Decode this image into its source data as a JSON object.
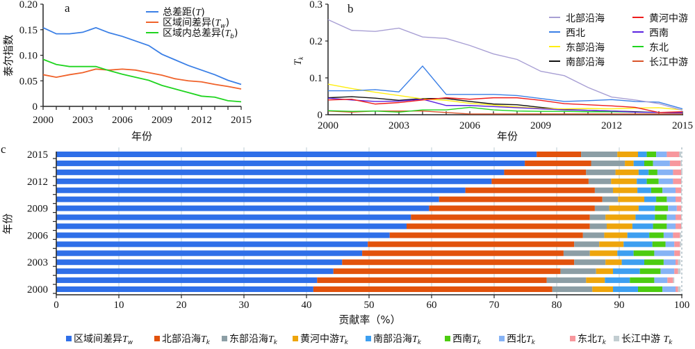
{
  "chart_data": [
    {
      "id": "a",
      "type": "line",
      "panel_label": "a",
      "xlabel": "年份",
      "ylabel": "泰尔指数",
      "xlim": [
        2000,
        2015
      ],
      "ylim": [
        0,
        0.2
      ],
      "xticks": [
        "2000",
        "2003",
        "2006",
        "2009",
        "2012",
        "2015"
      ],
      "yticks": [
        "0",
        "0.05",
        "0.10",
        "0.15",
        "0.20"
      ],
      "x": [
        2000,
        2001,
        2002,
        2003,
        2004,
        2005,
        2006,
        2007,
        2008,
        2009,
        2010,
        2011,
        2012,
        2013,
        2014,
        2015
      ],
      "legend_position": "top-right",
      "series": [
        {
          "name": "总差距(T)",
          "color": "#3a7fe6",
          "values": [
            0.154,
            0.142,
            0.142,
            0.145,
            0.154,
            0.144,
            0.137,
            0.128,
            0.119,
            0.102,
            0.091,
            0.08,
            0.071,
            0.062,
            0.051,
            0.043
          ]
        },
        {
          "name": "区域间差异(Tw)",
          "color": "#f0622a",
          "values": [
            0.062,
            0.057,
            0.062,
            0.066,
            0.073,
            0.071,
            0.073,
            0.071,
            0.066,
            0.061,
            0.054,
            0.05,
            0.048,
            0.043,
            0.039,
            0.034
          ]
        },
        {
          "name": "区域内总差异(Tb)",
          "color": "#1fd41f",
          "values": [
            0.092,
            0.082,
            0.078,
            0.078,
            0.078,
            0.07,
            0.063,
            0.057,
            0.051,
            0.041,
            0.034,
            0.027,
            0.02,
            0.018,
            0.011,
            0.009
          ]
        }
      ]
    },
    {
      "id": "b",
      "type": "line",
      "panel_label": "b",
      "xlabel": "年份",
      "ylabel": "Tk",
      "xlim": [
        2000,
        2015
      ],
      "ylim": [
        0,
        0.3
      ],
      "xticks": [
        "2000",
        "2003",
        "2006",
        "2009",
        "2012",
        "2015"
      ],
      "yticks": [
        "0",
        "0.1",
        "0.2",
        "0.3"
      ],
      "x": [
        2000,
        2001,
        2002,
        2003,
        2004,
        2005,
        2006,
        2007,
        2008,
        2009,
        2010,
        2011,
        2012,
        2013,
        2014,
        2015
      ],
      "legend_position": "top-right",
      "series": [
        {
          "name": "北部沿海",
          "color": "#a89fd4",
          "values": [
            0.258,
            0.229,
            0.226,
            0.235,
            0.211,
            0.207,
            0.188,
            0.165,
            0.15,
            0.118,
            0.106,
            0.074,
            0.048,
            0.04,
            0.03,
            0.012
          ]
        },
        {
          "name": "黄河中游",
          "color": "#ee1c1c",
          "values": [
            0.04,
            0.042,
            0.029,
            0.033,
            0.04,
            0.046,
            0.042,
            0.046,
            0.046,
            0.039,
            0.03,
            0.027,
            0.024,
            0.02,
            0.006,
            0.008
          ]
        },
        {
          "name": "西北",
          "color": "#3a7fe6",
          "values": [
            0.065,
            0.065,
            0.068,
            0.062,
            0.132,
            0.055,
            0.055,
            0.055,
            0.052,
            0.044,
            0.036,
            0.038,
            0.041,
            0.036,
            0.034,
            0.016
          ]
        },
        {
          "name": "西南",
          "color": "#5b22e0",
          "values": [
            0.045,
            0.04,
            0.036,
            0.037,
            0.042,
            0.025,
            0.025,
            0.022,
            0.019,
            0.016,
            0.013,
            0.012,
            0.01,
            0.007,
            0.006,
            0.005
          ]
        },
        {
          "name": "东部沿海",
          "color": "#ffee11",
          "values": [
            0.083,
            0.071,
            0.061,
            0.052,
            0.043,
            0.039,
            0.031,
            0.026,
            0.021,
            0.017,
            0.016,
            0.017,
            0.016,
            0.018,
            0.019,
            0.013
          ]
        },
        {
          "name": "东北",
          "color": "#1fd41f",
          "values": [
            0.011,
            0.009,
            0.01,
            0.007,
            0.013,
            0.013,
            0.02,
            0.013,
            0.01,
            0.009,
            0.009,
            0.008,
            0.008,
            0.007,
            0.006,
            0.007
          ]
        },
        {
          "name": "南部沿海",
          "color": "#111111",
          "values": [
            0.046,
            0.049,
            0.045,
            0.039,
            0.044,
            0.044,
            0.036,
            0.029,
            0.027,
            0.02,
            0.014,
            0.012,
            0.01,
            0.008,
            0.006,
            0.005
          ]
        },
        {
          "name": "长江中游",
          "color": "#d9542a",
          "values": [
            0.01,
            0.007,
            0.01,
            0.01,
            0.01,
            0.006,
            0.002,
            0.002,
            0.002,
            0.002,
            0.002,
            0.002,
            0.002,
            0.002,
            0.002,
            0.002
          ]
        }
      ]
    },
    {
      "id": "c",
      "type": "bar",
      "orientation": "horizontal",
      "stacked": true,
      "panel_label": "c",
      "xlabel": "贡献率（%）",
      "ylabel": "年份",
      "xlim": [
        0,
        100
      ],
      "xticks": [
        "0",
        "10",
        "20",
        "30",
        "40",
        "50",
        "60",
        "70",
        "80",
        "90",
        "100"
      ],
      "yticks": [
        "2000",
        "2003",
        "2006",
        "2009",
        "2012",
        "2015"
      ],
      "grid": "vertical",
      "legend_position": "bottom",
      "categories": [
        "2000",
        "2001",
        "2002",
        "2003",
        "2004",
        "2005",
        "2006",
        "2007",
        "2008",
        "2009",
        "2010",
        "2011",
        "2012",
        "2013",
        "2014",
        "2015"
      ],
      "series": [
        {
          "name": "区域间差异Tw",
          "color": "#2f6fe8",
          "values": [
            41.1,
            41.7,
            44.3,
            45.7,
            48.9,
            49.8,
            53.3,
            56.0,
            56.7,
            59.6,
            61.2,
            65.4,
            69.6,
            71.6,
            74.9,
            76.8
          ]
        },
        {
          "name": "北部沿海Tk",
          "color": "#e2520c",
          "values": [
            38.2,
            36.7,
            36.3,
            37.1,
            32.2,
            33.0,
            30.9,
            29.3,
            28.6,
            26.5,
            26.1,
            20.7,
            15.5,
            13.1,
            10.6,
            7.1
          ]
        },
        {
          "name": "东部沿海Tk",
          "color": "#8c9ea5",
          "values": [
            6.4,
            6.3,
            5.7,
            5.0,
            4.2,
            4.0,
            3.4,
            2.7,
            2.5,
            2.3,
            2.5,
            2.9,
            3.6,
            4.7,
            5.4,
            5.8
          ]
        },
        {
          "name": "黄河中游Tk",
          "color": "#eea50c",
          "values": [
            3.3,
            3.0,
            2.7,
            2.6,
            4.4,
            3.9,
            3.7,
            4.1,
            4.8,
            4.7,
            4.2,
            3.9,
            4.1,
            3.7,
            1.4,
            3.3
          ]
        },
        {
          "name": "南部沿海Tk",
          "color": "#3d9ff0",
          "values": [
            4.0,
            4.0,
            4.3,
            3.6,
            2.6,
            4.6,
            3.5,
            3.3,
            3.1,
            2.6,
            1.9,
            2.2,
            1.6,
            1.6,
            1.7,
            1.4
          ]
        },
        {
          "name": "西南Tk",
          "color": "#4ccc10",
          "values": [
            3.9,
            3.9,
            3.3,
            3.1,
            3.3,
            2.1,
            2.3,
            2.2,
            1.9,
            2.1,
            1.7,
            1.8,
            1.9,
            1.4,
            1.4,
            1.5
          ]
        },
        {
          "name": "西北Tk",
          "color": "#86b3f5",
          "values": [
            2.1,
            2.1,
            2.2,
            1.9,
            3.2,
            1.4,
            1.5,
            1.4,
            1.4,
            1.4,
            1.4,
            2.1,
            2.3,
            2.5,
            2.7,
            1.7
          ]
        },
        {
          "name": "东北Tk",
          "color": "#f7979d",
          "values": [
            0.4,
            0.9,
            0.6,
            0.4,
            0.9,
            0.9,
            1.1,
            0.9,
            0.9,
            0.7,
            0.9,
            0.9,
            1.3,
            1.3,
            1.7,
            2.0
          ]
        },
        {
          "name": "长江中游 Tk",
          "color": "#c2cdd1",
          "values": [
            0.4,
            0.2,
            0.4,
            0.4,
            0.1,
            0.2,
            0.2,
            0.1,
            0.1,
            0.1,
            0.1,
            0.1,
            0.1,
            0.2,
            0.2,
            0.3
          ]
        }
      ]
    }
  ]
}
